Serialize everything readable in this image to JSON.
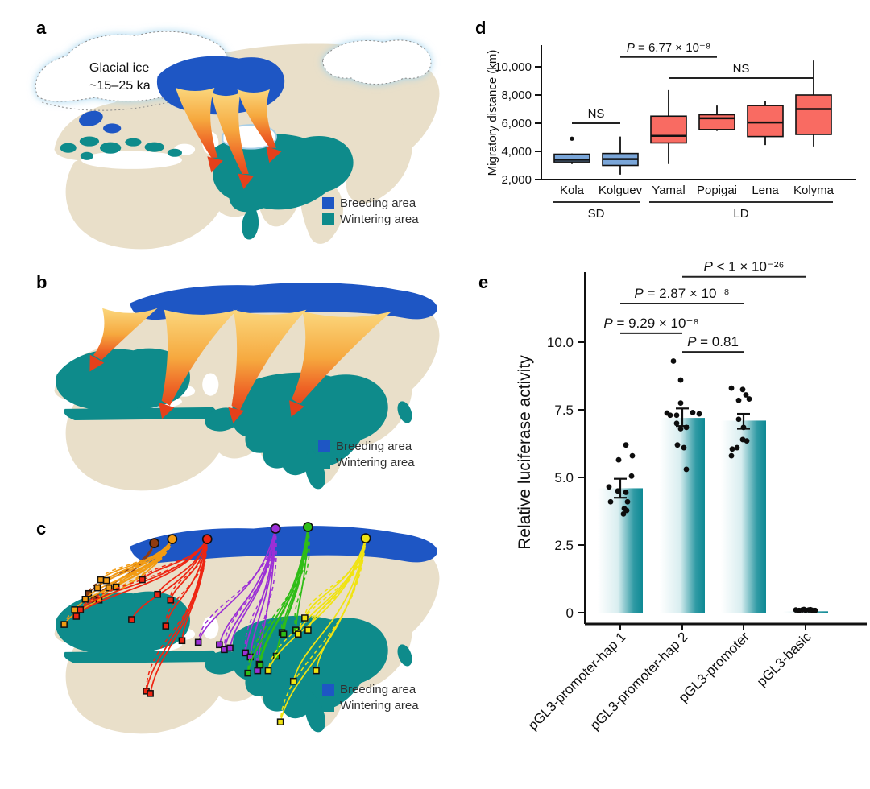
{
  "panels": {
    "a": {
      "label": "a",
      "glacial_label_line1": "Glacial ice",
      "glacial_label_line2": "~15–25 ka",
      "legend": {
        "breeding": "Breeding area",
        "wintering": "Wintering area"
      }
    },
    "b": {
      "label": "b",
      "legend": {
        "breeding": "Breeding area",
        "wintering": "Wintering area"
      }
    },
    "c": {
      "label": "c",
      "legend": {
        "breeding": "Breeding area",
        "wintering": "Wintering area"
      },
      "tracks": [
        {
          "population": "Kola",
          "color": "#8f3b10",
          "circle": [
            178,
            58
          ],
          "squares": [
            [
              97,
              120
            ],
            [
              104,
              127
            ]
          ]
        },
        {
          "population": "Kolguev",
          "color": "#f29b13",
          "circle": [
            200,
            53
          ],
          "squares": [
            [
              112,
              103
            ],
            [
              119,
              104
            ],
            [
              108,
              113
            ],
            [
              122,
              113
            ],
            [
              131,
              112
            ],
            [
              93,
              127
            ],
            [
              110,
              128
            ],
            [
              80,
              140
            ],
            [
              67,
              158
            ]
          ]
        },
        {
          "population": "Yamal",
          "color": "#ee2512",
          "circle": [
            243,
            53
          ],
          "squares": [
            [
              163,
              103
            ],
            [
              182,
              121
            ],
            [
              198,
              128
            ],
            [
              150,
              152
            ],
            [
              87,
              140
            ],
            [
              82,
              148
            ],
            [
              192,
              160
            ],
            [
              212,
              178
            ],
            [
              168,
              240
            ],
            [
              173,
              243
            ]
          ]
        },
        {
          "population": "Popigai",
          "color": "#9c2fd6",
          "circle": [
            327,
            40
          ],
          "squares": [
            [
              232,
              180
            ],
            [
              258,
              183
            ],
            [
              264,
              189
            ],
            [
              271,
              187
            ],
            [
              290,
              193
            ],
            [
              296,
              198
            ],
            [
              305,
              215
            ]
          ]
        },
        {
          "population": "Lena",
          "color": "#2fbd17",
          "circle": [
            367,
            38
          ],
          "squares": [
            [
              335,
              168
            ],
            [
              337,
              170
            ],
            [
              352,
              165
            ],
            [
              328,
              197
            ],
            [
              307,
              207
            ],
            [
              308,
              208
            ],
            [
              293,
              218
            ]
          ]
        },
        {
          "population": "Kolyma",
          "color": "#f0e312",
          "circle": [
            438,
            52
          ],
          "squares": [
            [
              363,
              150
            ],
            [
              367,
              165
            ],
            [
              355,
              170
            ],
            [
              349,
              228
            ],
            [
              318,
              215
            ],
            [
              377,
              215
            ],
            [
              333,
              278
            ]
          ]
        }
      ]
    },
    "d": {
      "label": "d"
    },
    "e": {
      "label": "e"
    }
  },
  "colors": {
    "breeding_area": "#1e56c4",
    "wintering_area": "#0e8b8b",
    "land": "#e9dfc9",
    "ocean": "#ffffff",
    "glacial_ice_glow": "#9fd2ee",
    "sd_box": "#7aa6d9",
    "ld_box": "#f96b62",
    "bar_teal": "#0e8994",
    "arrow_head": "#e5401b"
  },
  "chart_data": [
    {
      "type": "boxplot",
      "panel": "d",
      "ylabel": "Migratory distance (km)",
      "ylim": [
        2000,
        11400
      ],
      "yticks": [
        2000,
        4000,
        6000,
        8000,
        10000
      ],
      "ytick_labels": [
        "2,000",
        "4,000",
        "6,000",
        "8,000",
        "10,000"
      ],
      "categories": [
        "Kola",
        "Kolguev",
        "Yamal",
        "Popigai",
        "Lena",
        "Kolyma"
      ],
      "groups": [
        {
          "label": "SD",
          "from": "Kola",
          "to": "Kolguev",
          "box_color": "#7aa6d9"
        },
        {
          "label": "LD",
          "from": "Yamal",
          "to": "Kolyma",
          "box_color": "#f96b62"
        }
      ],
      "boxes": [
        {
          "category": "Kola",
          "group": "SD",
          "whisker_low": 3100,
          "q1": 3250,
          "median": 3400,
          "q3": 3800,
          "whisker_high": 3850,
          "outliers": [
            4900
          ]
        },
        {
          "category": "Kolguev",
          "group": "SD",
          "whisker_low": 2350,
          "q1": 3000,
          "median": 3450,
          "q3": 3850,
          "whisker_high": 5050,
          "outliers": []
        },
        {
          "category": "Yamal",
          "group": "LD",
          "whisker_low": 3100,
          "q1": 4600,
          "median": 5100,
          "q3": 6500,
          "whisker_high": 8350,
          "outliers": []
        },
        {
          "category": "Popigai",
          "group": "LD",
          "whisker_low": 5450,
          "q1": 5550,
          "median": 6350,
          "q3": 6600,
          "whisker_high": 7250,
          "outliers": []
        },
        {
          "category": "Lena",
          "group": "LD",
          "whisker_low": 4450,
          "q1": 5050,
          "median": 6050,
          "q3": 7250,
          "whisker_high": 7550,
          "outliers": []
        },
        {
          "category": "Kolyma",
          "group": "LD",
          "whisker_low": 4350,
          "q1": 5200,
          "median": 7000,
          "q3": 8000,
          "whisker_high": 10450,
          "outliers": []
        }
      ],
      "annotations": [
        {
          "text": "NS",
          "x1": "Kola",
          "x2": "Kolguev",
          "y": 6000
        },
        {
          "text": "P = 6.77 × 10⁻⁸",
          "x1": "Kolguev",
          "x2": "Popigai",
          "y": 10700
        },
        {
          "text": "NS",
          "x1": "Yamal",
          "x2": "Kolyma",
          "y": 9200
        }
      ]
    },
    {
      "type": "bar",
      "panel": "e",
      "ylabel": "Relative luciferase activity",
      "ylim": [
        0,
        12.6
      ],
      "yticks": [
        0,
        2.5,
        5.0,
        7.5,
        10.0
      ],
      "ytick_labels": [
        "0",
        "2.5",
        "5.0",
        "7.5",
        "10.0"
      ],
      "categories": [
        "pGL3-promoter-hap 1",
        "pGL3-promoter-hap 2",
        "pGL3-promoter",
        "pGL3-basic"
      ],
      "values": [
        4.6,
        7.2,
        7.1,
        0.05
      ],
      "error_bars": [
        [
          4.25,
          4.95
        ],
        [
          6.9,
          7.55
        ],
        [
          6.8,
          7.35
        ],
        null
      ],
      "points": [
        [
          [
            7,
            6.2
          ],
          [
            15,
            5.8
          ],
          [
            -2,
            5.65
          ],
          [
            14,
            5.05
          ],
          [
            -14,
            4.65
          ],
          [
            -3,
            4.5
          ],
          [
            7,
            4.45
          ],
          [
            -12,
            4.1
          ],
          [
            9,
            4.1
          ],
          [
            5,
            3.85
          ],
          [
            8,
            3.78
          ],
          [
            4,
            3.65
          ]
        ],
        [
          [
            -11,
            9.3
          ],
          [
            -2,
            8.6
          ],
          [
            -2,
            7.75
          ],
          [
            13,
            7.4
          ],
          [
            -19,
            7.38
          ],
          [
            21,
            7.35
          ],
          [
            -15,
            7.3
          ],
          [
            -7,
            7.3
          ],
          [
            -7,
            7.0
          ],
          [
            5,
            6.85
          ],
          [
            -2,
            6.8
          ],
          [
            -6,
            6.2
          ],
          [
            2,
            6.1
          ],
          [
            5,
            5.3
          ]
        ],
        [
          [
            -15,
            8.3
          ],
          [
            -1,
            8.25
          ],
          [
            3,
            8.05
          ],
          [
            7,
            7.9
          ],
          [
            -6,
            7.85
          ],
          [
            -6,
            7.15
          ],
          [
            0,
            6.85
          ],
          [
            -1,
            6.4
          ],
          [
            4,
            6.35
          ],
          [
            -8,
            6.1
          ],
          [
            -14,
            6.05
          ],
          [
            -15,
            5.8
          ]
        ],
        [
          [
            -12,
            0.1
          ],
          [
            -8,
            0.08
          ],
          [
            -4,
            0.1
          ],
          [
            0,
            0.09
          ],
          [
            4,
            0.1
          ],
          [
            8,
            0.09
          ],
          [
            12,
            0.08
          ],
          [
            -2,
            0.12
          ],
          [
            6,
            0.11
          ]
        ]
      ],
      "bar_gradient": [
        "#ffffff",
        "#0e8994"
      ],
      "annotations": [
        {
          "text": "P < 1 × 10⁻²⁶",
          "x1": 1,
          "x2": 3,
          "y": 12.42
        },
        {
          "text": "P = 2.87 × 10⁻⁸",
          "x1": 0,
          "x2": 2,
          "y": 11.43
        },
        {
          "text": "P = 9.29 × 10⁻⁸",
          "x1": 0,
          "x2": 1,
          "y": 10.33
        },
        {
          "text": "P = 0.81",
          "x1": 1,
          "x2": 2,
          "y": 9.64
        }
      ]
    }
  ]
}
